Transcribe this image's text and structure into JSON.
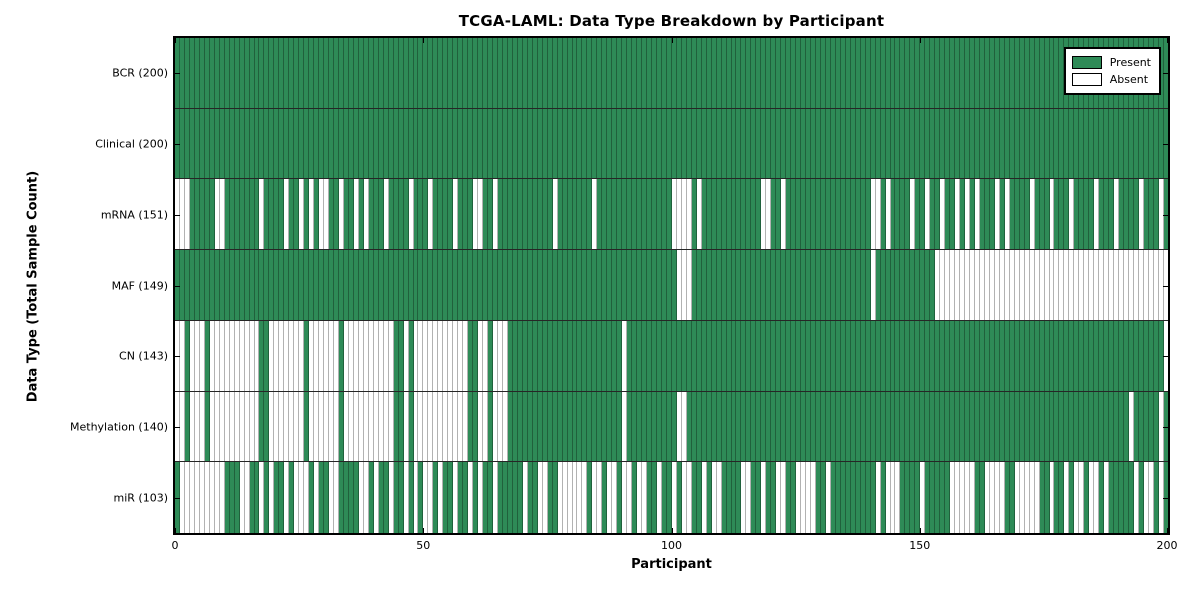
{
  "chart_data": {
    "type": "heatmap",
    "title": "TCGA-LAML: Data Type Breakdown by Participant",
    "xlabel": "Participant",
    "ylabel": "Data Type (Total Sample Count)",
    "x_ticks": [
      0,
      50,
      100,
      150,
      200
    ],
    "x_range": [
      0,
      200
    ],
    "n_participants": 200,
    "grid": false,
    "legend_position": "upper right",
    "legend": [
      {
        "label": "Present",
        "color": "#2e8b57"
      },
      {
        "label": "Absent",
        "color": "#ffffff"
      }
    ],
    "colors": {
      "present": "#2e8b57",
      "absent": "#ffffff",
      "cell_edge": "rgba(0,0,0,0.30)",
      "frame": "#000000"
    },
    "rows": [
      {
        "label": "BCR (200)",
        "data_type": "BCR",
        "present_count": 200,
        "pattern": "11111111111111111111111111111111111111111111111111111111111111111111111111111111111111111111111111111111111111111111111111111111111111111111111111111111111111111111111111111111111111111111111111111111"
      },
      {
        "label": "Clinical (200)",
        "data_type": "Clinical",
        "present_count": 200,
        "pattern": "11111111111111111111111111111111111111111111111111111111111111111111111111111111111111111111111111111111111111111111111111111111111111111111111111111111111111111111111111111111111111111111111111111111"
      },
      {
        "label": "mRNA (151)",
        "data_type": "mRNA",
        "present_count": 151,
        "pattern": "00011111001111111011110110101001101101011101111011101111011100110111111111110111111101111111111111110000101111111111110011011111111111111111001011110110110110101011101011110111011101111011101111011101"
      },
      {
        "label": "MAF (149)",
        "data_type": "MAF",
        "present_count": 149,
        "pattern": "11111111111111111111111111111111111111111111111111111111111111111111111111111111111111111111111111111000111111111111111111111111111111111111011111111111100000000000000000000000000000000000000000000000"
      },
      {
        "label": "CN (143)",
        "data_type": "CN",
        "present_count": 143,
        "pattern": "00100010000000000110000000100000010000000000110100000000000110010001111111111111111111111101111111111111111111111111111111111111111111111111111111111111111111111111111111111111111111111111111111111110"
      },
      {
        "label": "Methylation (140)",
        "data_type": "Methylation",
        "present_count": 140,
        "pattern": "00100010000000000110000000100000010000000000110100000000000110010001111111111111111111111101111111111001111111111111111111111111111111111111111111111111111111111111111111111111111111111111111101111101"
      },
      {
        "label": "miR (103)",
        "data_type": "miR",
        "present_count": 103,
        "pattern": "10000000001110011010110100010110011110010110110101001011011010110111110110011000000100100100100110110100110100111100110110011000011011111111101000111101111100000110000110000011011010010010111110100101"
      }
    ]
  }
}
